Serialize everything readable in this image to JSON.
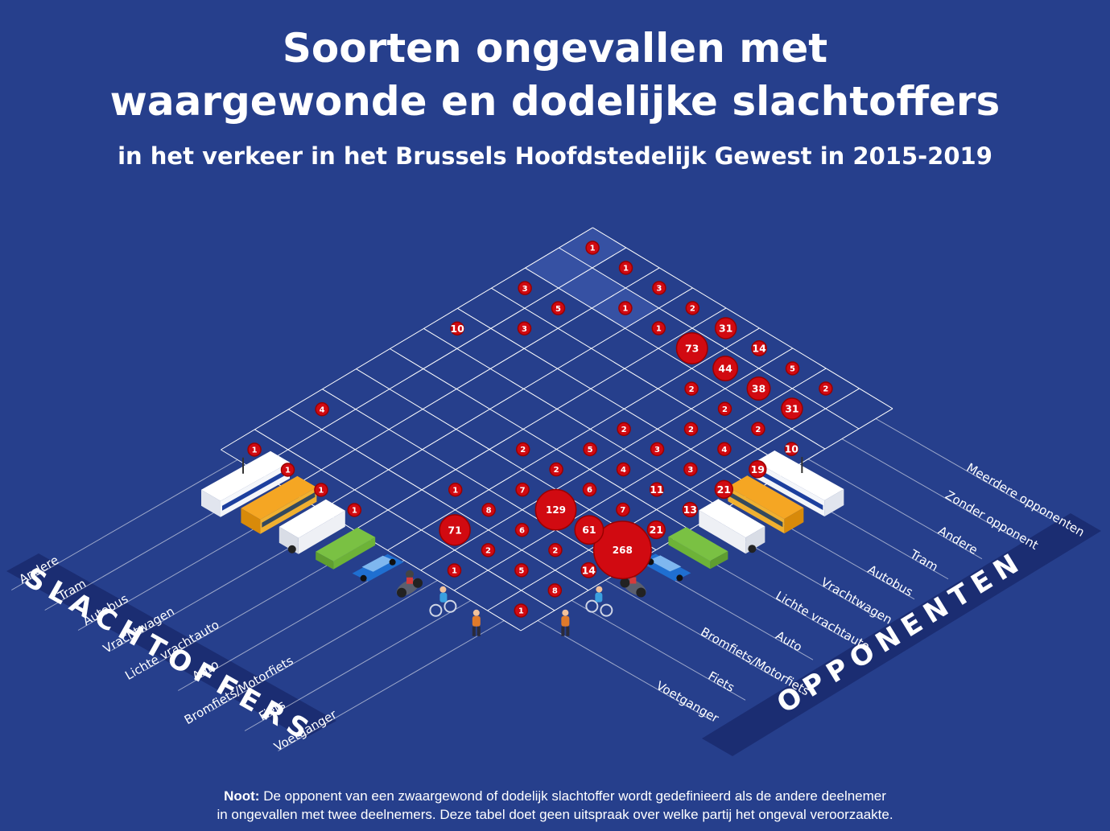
{
  "header": {
    "title_line1": "Soorten ongevallen met",
    "title_line2": "waargewonde en dodelijke slachtoffers",
    "subtitle": "in het verkeer in het Brussels Hoofdstedelijk Gewest in 2015-2019"
  },
  "banners": {
    "left": "SLACHTOFFERS",
    "right": "OPPONENTEN"
  },
  "note": {
    "label": "Noot:",
    "line1": "De opponent van een zwaargewond of dodelijk slachtoffer wordt gedefinieerd als de andere deelnemer",
    "line2": "in ongevallen met twee deelnemers. Deze tabel doet geen uitspraak over welke partij het ongeval veroorzaakte."
  },
  "colors": {
    "background": "#263f8c",
    "banner": "#1b2d72",
    "grid": "#ffffff",
    "bubble": "#d10a11",
    "bubble_dark": "#9a0000"
  },
  "chart_data": {
    "type": "scatter",
    "victim_categories": [
      "Voetganger",
      "Fiets",
      "Bromfiets/Motorfiets",
      "Auto",
      "Lichte vrachtauto",
      "Vrachtwagen",
      "Autobus",
      "Tram",
      "Andere"
    ],
    "opponent_categories": [
      "Voetganger",
      "Fiets",
      "Bromfiets/Motorfiets",
      "Auto",
      "Lichte vrachtauto",
      "Vrachtwagen",
      "Autobus",
      "Tram",
      "Andere",
      "Zonder opponent",
      "Meerdere opponenten"
    ],
    "values": [
      {
        "victim": "Voetganger",
        "opponent": "Voetganger",
        "value": 1
      },
      {
        "victim": "Voetganger",
        "opponent": "Fiets",
        "value": 8
      },
      {
        "victim": "Voetganger",
        "opponent": "Bromfiets/Motorfiets",
        "value": 14
      },
      {
        "victim": "Voetganger",
        "opponent": "Auto",
        "value": 268
      },
      {
        "victim": "Voetganger",
        "opponent": "Lichte vrachtauto",
        "value": 21
      },
      {
        "victim": "Voetganger",
        "opponent": "Vrachtwagen",
        "value": 13
      },
      {
        "victim": "Voetganger",
        "opponent": "Autobus",
        "value": 21
      },
      {
        "victim": "Voetganger",
        "opponent": "Tram",
        "value": 19
      },
      {
        "victim": "Voetganger",
        "opponent": "Andere",
        "value": 10
      },
      {
        "victim": "Fiets",
        "opponent": "Fiets",
        "value": 5
      },
      {
        "victim": "Fiets",
        "opponent": "Bromfiets/Motorfiets",
        "value": 2
      },
      {
        "victim": "Fiets",
        "opponent": "Auto",
        "value": 61
      },
      {
        "victim": "Fiets",
        "opponent": "Lichte vrachtauto",
        "value": 7
      },
      {
        "victim": "Fiets",
        "opponent": "Vrachtwagen",
        "value": 11
      },
      {
        "victim": "Fiets",
        "opponent": "Autobus",
        "value": 3
      },
      {
        "victim": "Fiets",
        "opponent": "Tram",
        "value": 4
      },
      {
        "victim": "Fiets",
        "opponent": "Andere",
        "value": 2
      },
      {
        "victim": "Fiets",
        "opponent": "Zonder opponent",
        "value": 31
      },
      {
        "victim": "Fiets",
        "opponent": "Meerdere opponenten",
        "value": 2
      },
      {
        "victim": "Bromfiets/Motorfiets",
        "opponent": "Voetganger",
        "value": 1
      },
      {
        "victim": "Bromfiets/Motorfiets",
        "opponent": "Fiets",
        "value": 2
      },
      {
        "victim": "Bromfiets/Motorfiets",
        "opponent": "Bromfiets/Motorfiets",
        "value": 6
      },
      {
        "victim": "Bromfiets/Motorfiets",
        "opponent": "Auto",
        "value": 129
      },
      {
        "victim": "Bromfiets/Motorfiets",
        "opponent": "Lichte vrachtauto",
        "value": 6
      },
      {
        "victim": "Bromfiets/Motorfiets",
        "opponent": "Vrachtwagen",
        "value": 4
      },
      {
        "victim": "Bromfiets/Motorfiets",
        "opponent": "Autobus",
        "value": 3
      },
      {
        "victim": "Bromfiets/Motorfiets",
        "opponent": "Tram",
        "value": 2
      },
      {
        "victim": "Bromfiets/Motorfiets",
        "opponent": "Andere",
        "value": 2
      },
      {
        "victim": "Bromfiets/Motorfiets",
        "opponent": "Zonder opponent",
        "value": 38
      },
      {
        "victim": "Bromfiets/Motorfiets",
        "opponent": "Meerdere opponenten",
        "value": 5
      },
      {
        "victim": "Auto",
        "opponent": "Fiets",
        "value": 71
      },
      {
        "victim": "Auto",
        "opponent": "Bromfiets/Motorfiets",
        "value": 8
      },
      {
        "victim": "Auto",
        "opponent": "Auto",
        "value": 7
      },
      {
        "victim": "Auto",
        "opponent": "Lichte vrachtauto",
        "value": 2
      },
      {
        "victim": "Auto",
        "opponent": "Vrachtwagen",
        "value": 5
      },
      {
        "victim": "Auto",
        "opponent": "Autobus",
        "value": 2
      },
      {
        "victim": "Auto",
        "opponent": "Andere",
        "value": 2
      },
      {
        "victim": "Auto",
        "opponent": "Zonder opponent",
        "value": 44
      },
      {
        "victim": "Auto",
        "opponent": "Meerdere opponenten",
        "value": 14
      },
      {
        "victim": "Lichte vrachtauto",
        "opponent": "Bromfiets/Motorfiets",
        "value": 1
      },
      {
        "victim": "Lichte vrachtauto",
        "opponent": "Lichte vrachtauto",
        "value": 2
      },
      {
        "victim": "Lichte vrachtauto",
        "opponent": "Zonder opponent",
        "value": 73
      },
      {
        "victim": "Lichte vrachtauto",
        "opponent": "Meerdere opponenten",
        "value": 31
      },
      {
        "victim": "Vrachtwagen",
        "opponent": "Voetganger",
        "value": 1
      },
      {
        "victim": "Vrachtwagen",
        "opponent": "Zonder opponent",
        "value": 1
      },
      {
        "victim": "Vrachtwagen",
        "opponent": "Meerdere opponenten",
        "value": 2
      },
      {
        "victim": "Autobus",
        "opponent": "Voetganger",
        "value": 1
      },
      {
        "victim": "Autobus",
        "opponent": "Zonder opponent",
        "value": 1
      },
      {
        "victim": "Autobus",
        "opponent": "Meerdere opponenten",
        "value": 3
      },
      {
        "victim": "Tram",
        "opponent": "Voetganger",
        "value": 1
      },
      {
        "victim": "Tram",
        "opponent": "Tram",
        "value": 3
      },
      {
        "victim": "Tram",
        "opponent": "Andere",
        "value": 5
      },
      {
        "victim": "Tram",
        "opponent": "Meerdere opponenten",
        "value": 1
      },
      {
        "victim": "Andere",
        "opponent": "Voetganger",
        "value": 1
      },
      {
        "victim": "Andere",
        "opponent": "Bromfiets/Motorfiets",
        "value": 4
      },
      {
        "victim": "Andere",
        "opponent": "Autobus",
        "value": 10
      },
      {
        "victim": "Andere",
        "opponent": "Andere",
        "value": 3
      },
      {
        "victim": "Andere",
        "opponent": "Meerdere opponenten",
        "value": 1
      }
    ]
  }
}
